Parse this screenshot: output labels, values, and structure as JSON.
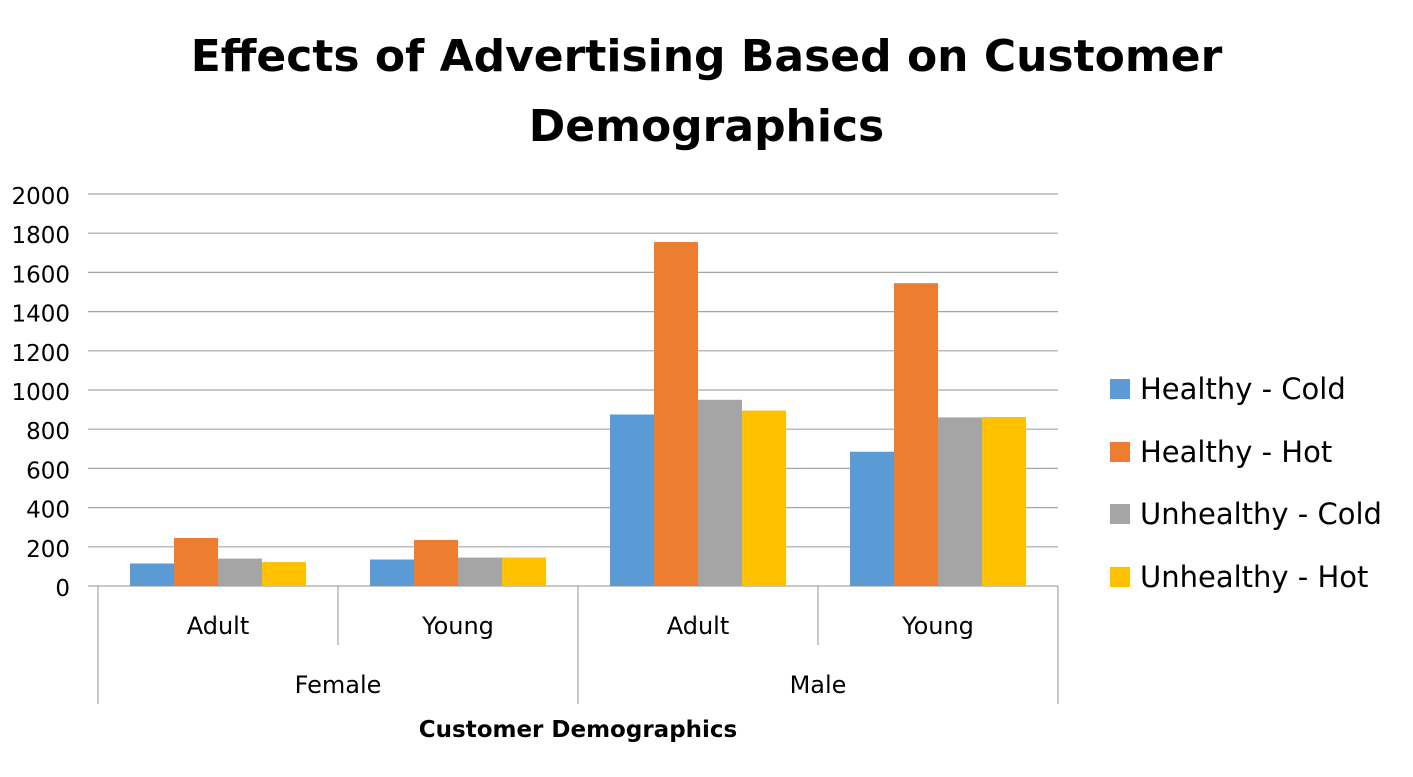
{
  "chart_data": {
    "type": "bar",
    "title_line1": "Effects of Advertising Based on Customer",
    "title_line2": "Demographics",
    "xlabel": "Customer Demographics",
    "ylabel": "",
    "ylim": [
      0,
      2000
    ],
    "yticks": [
      0,
      200,
      400,
      600,
      800,
      1000,
      1200,
      1400,
      1600,
      1800,
      2000
    ],
    "grid": true,
    "legend_position": "right",
    "groups": [
      {
        "label": "Female",
        "categories": [
          "Adult",
          "Young"
        ]
      },
      {
        "label": "Male",
        "categories": [
          "Adult",
          "Young"
        ]
      }
    ],
    "categories": [
      "Adult",
      "Young",
      "Adult",
      "Young"
    ],
    "series": [
      {
        "name": "Healthy - Cold",
        "color": "#5B9BD5",
        "values": [
          115,
          135,
          875,
          685
        ]
      },
      {
        "name": "Healthy - Hot",
        "color": "#ED7D31",
        "values": [
          245,
          235,
          1755,
          1545
        ]
      },
      {
        "name": "Unhealthy - Cold",
        "color": "#A5A5A5",
        "values": [
          140,
          145,
          950,
          860
        ]
      },
      {
        "name": "Unhealthy - Hot",
        "color": "#FFC000",
        "values": [
          122,
          145,
          895,
          862
        ]
      }
    ]
  }
}
